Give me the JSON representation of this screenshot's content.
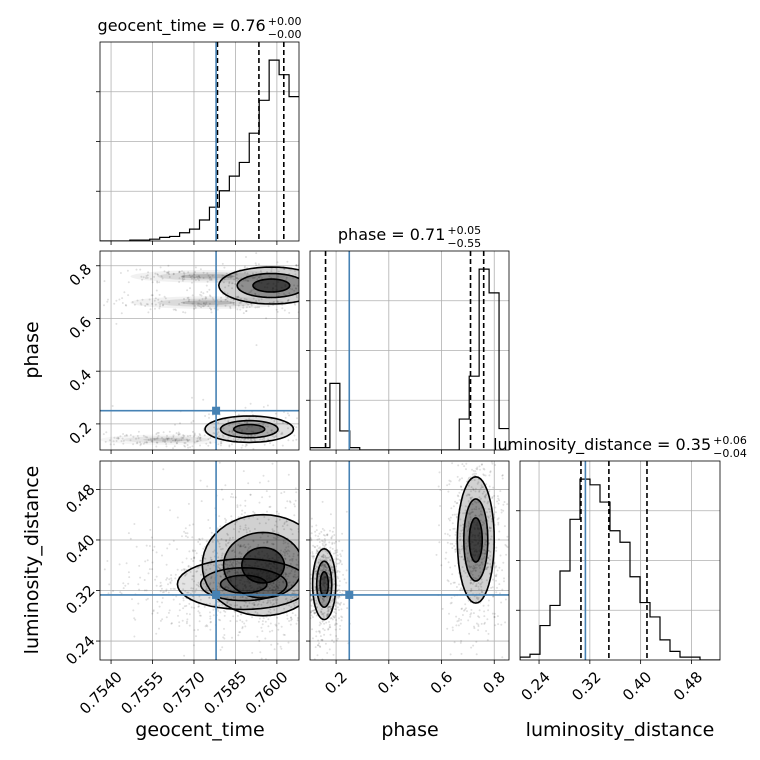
{
  "chart_data": {
    "type": "corner",
    "parameters": [
      "geocent_time",
      "phase",
      "luminosity_distance"
    ],
    "ranges": {
      "geocent_time": [
        0.7536,
        0.7608
      ],
      "phase": [
        0.101,
        0.856
      ],
      "luminosity_distance": [
        0.21,
        0.525
      ]
    },
    "truth": {
      "geocent_time": 0.7578,
      "phase": 0.25,
      "luminosity_distance": 0.313
    },
    "ticks": {
      "geocent_time": [
        "0.7540",
        "0.7555",
        "0.7570",
        "0.7585",
        "0.7600"
      ],
      "phase": [
        "0.2",
        "0.4",
        "0.6",
        "0.8"
      ],
      "luminosity_distance": [
        "0.24",
        "0.32",
        "0.40",
        "0.48"
      ]
    },
    "tick_values": {
      "geocent_time": [
        0.754,
        0.7555,
        0.757,
        0.7585,
        0.76
      ],
      "phase": [
        0.2,
        0.4,
        0.6,
        0.8
      ],
      "luminosity_distance": [
        0.24,
        0.32,
        0.4,
        0.48
      ]
    },
    "quantiles": {
      "geocent_time": [
        0.75785,
        0.75935,
        0.76025
      ],
      "phase": [
        0.16,
        0.71,
        0.76
      ],
      "luminosity_distance": [
        0.306,
        0.35,
        0.41
      ]
    },
    "titles": {
      "geocent_time": {
        "name": "geocent_time = 0.76",
        "plus": "+0.00",
        "minus": "−0.00"
      },
      "phase": {
        "name": "phase = 0.71",
        "plus": "+0.05",
        "minus": "−0.55"
      },
      "luminosity_distance": {
        "name": "luminosity_distance = 0.35",
        "plus": "+0.06",
        "minus": "−0.04"
      }
    },
    "histograms": {
      "geocent_time": {
        "edges_start": 0.7536,
        "bin_width": 0.00036,
        "counts": [
          0,
          0,
          0,
          1,
          1,
          2,
          4,
          5,
          9,
          13,
          23,
          37,
          55,
          71,
          86,
          118,
          154,
          198,
          182,
          158
        ]
      },
      "phase": {
        "edges_start": 0.101,
        "bin_width": 0.03775,
        "counts": [
          1,
          1,
          28,
          8,
          1,
          0,
          0,
          0,
          0,
          0,
          0,
          0,
          0,
          0,
          0,
          13,
          31,
          76,
          66,
          9
        ]
      },
      "luminosity_distance": {
        "edges_start": 0.21,
        "bin_width": 0.01575,
        "counts": [
          1,
          2,
          12,
          19,
          31,
          49,
          63,
          61,
          55,
          45,
          41,
          29,
          20,
          15,
          7,
          3,
          1,
          1,
          0,
          0
        ]
      }
    },
    "grid": true
  }
}
